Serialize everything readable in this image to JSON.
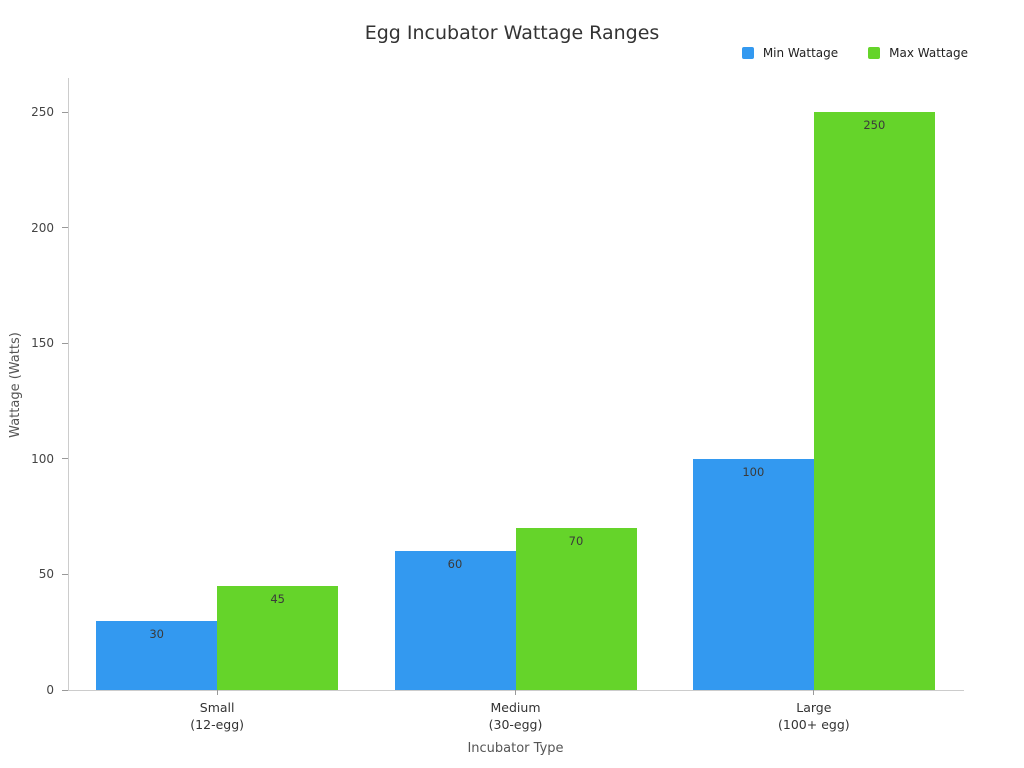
{
  "chart_data": {
    "type": "bar",
    "title": "Egg Incubator Wattage Ranges",
    "xlabel": "Incubator Type",
    "ylabel": "Wattage (Watts)",
    "categories": [
      "Small\n(12-egg)",
      "Medium\n(30-egg)",
      "Large\n(100+ egg)"
    ],
    "series": [
      {
        "name": "Min Wattage",
        "color": "#3399f0",
        "values": [
          30,
          60,
          100
        ]
      },
      {
        "name": "Max Wattage",
        "color": "#65d42a",
        "values": [
          45,
          70,
          250
        ]
      }
    ],
    "ylim": [
      0,
      250
    ],
    "yticks": [
      0,
      50,
      100,
      150,
      200,
      250
    ],
    "grid": false,
    "legend_position": "top-right",
    "bar_labels": true
  },
  "colors": {
    "axis_line": "#cccccc",
    "tick": "#999999",
    "tick_label": "#444444",
    "title": "#333333",
    "axis_title": "#555555",
    "bar_label": "#3a3a3a",
    "background": "#ffffff"
  }
}
